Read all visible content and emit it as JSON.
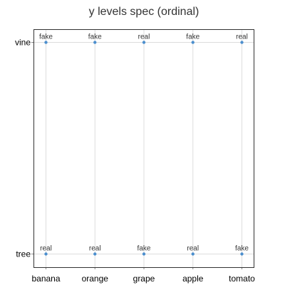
{
  "chart_data": {
    "type": "scatter",
    "title": "y levels spec (ordinal)",
    "xlabel": "",
    "ylabel": "",
    "x_categories": [
      "banana",
      "orange",
      "grape",
      "apple",
      "tomato"
    ],
    "y_categories": [
      "tree",
      "vine"
    ],
    "y_scale": "ordinal",
    "grid": true,
    "point_color": "#4c8fce",
    "points": [
      {
        "x": "banana",
        "y": "vine",
        "label": "fake"
      },
      {
        "x": "orange",
        "y": "vine",
        "label": "fake"
      },
      {
        "x": "grape",
        "y": "vine",
        "label": "real"
      },
      {
        "x": "apple",
        "y": "vine",
        "label": "fake"
      },
      {
        "x": "tomato",
        "y": "vine",
        "label": "real"
      },
      {
        "x": "banana",
        "y": "tree",
        "label": "real"
      },
      {
        "x": "orange",
        "y": "tree",
        "label": "real"
      },
      {
        "x": "grape",
        "y": "tree",
        "label": "fake"
      },
      {
        "x": "apple",
        "y": "tree",
        "label": "real"
      },
      {
        "x": "tomato",
        "y": "tree",
        "label": "fake"
      }
    ]
  }
}
